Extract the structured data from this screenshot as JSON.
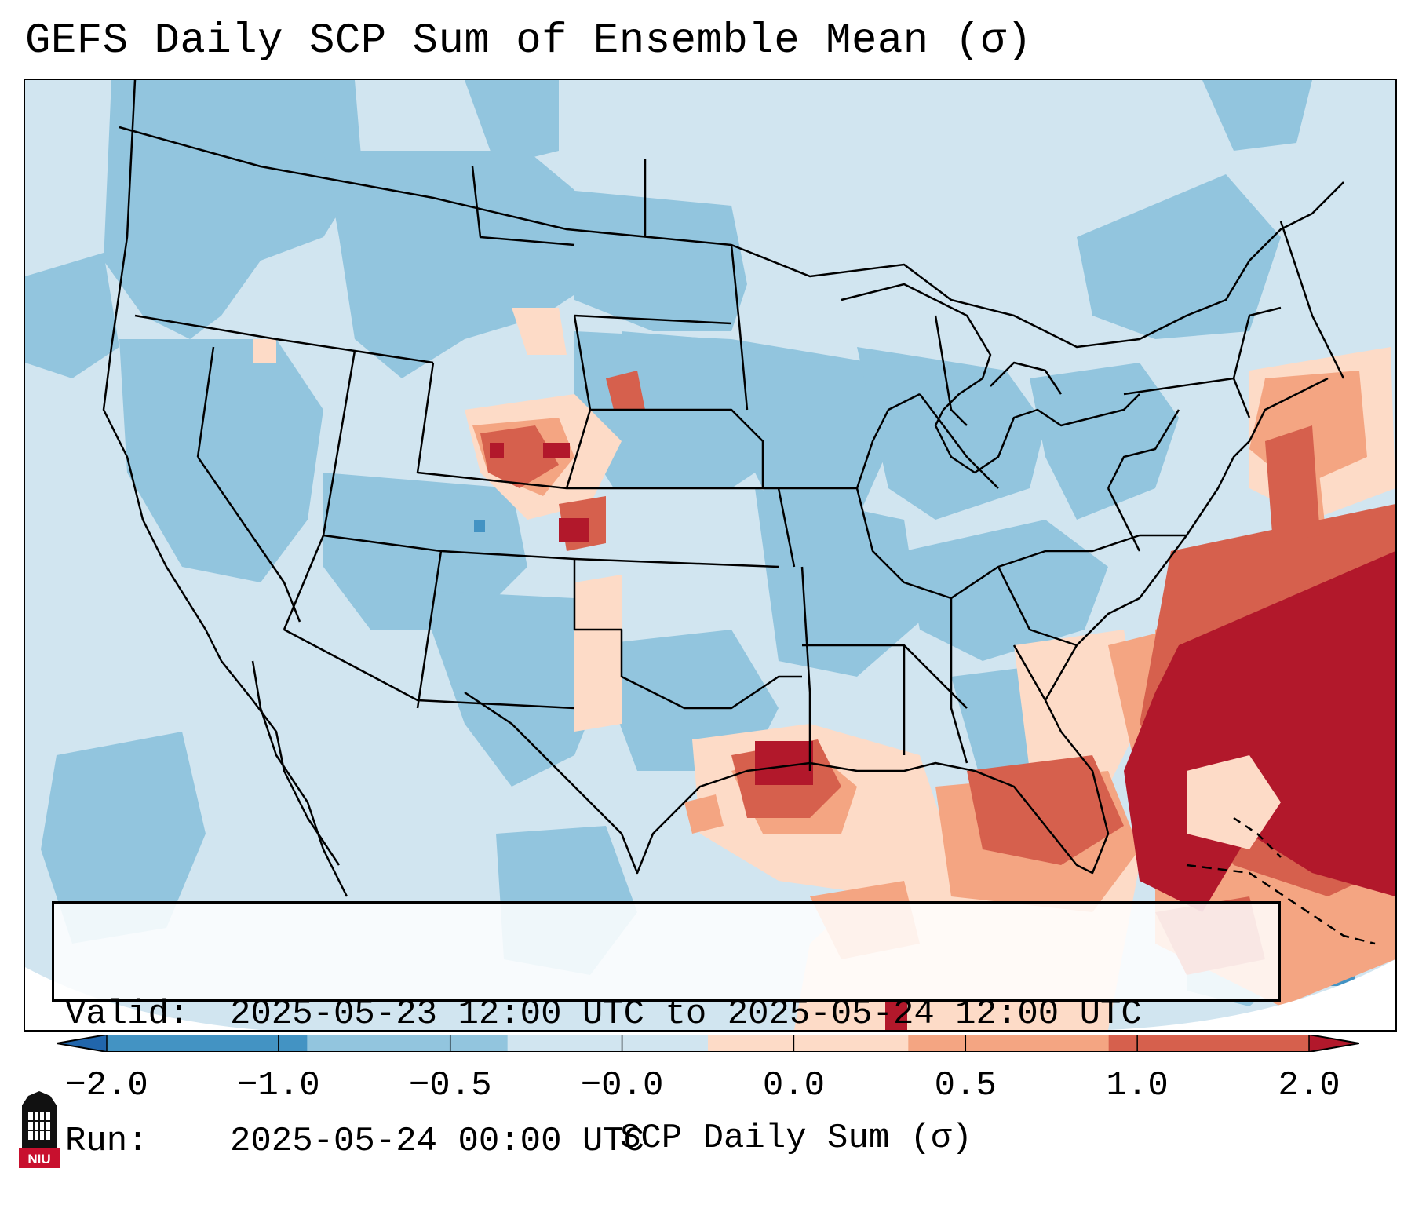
{
  "title": "GEFS Daily SCP Sum of Ensemble Mean (σ)",
  "info": {
    "valid_label": "Valid:",
    "valid_value": "2025-05-23 12:00 UTC to 2025-05-24 12:00 UTC",
    "run_label": "Run:",
    "run_value": "2025-05-24 00:00 UTC"
  },
  "colorbar": {
    "label": "SCP Daily Sum (σ)",
    "ticks": [
      "−2.0",
      "−1.0",
      "−0.5",
      "−0.0",
      "0.0",
      "0.5",
      "1.0",
      "2.0"
    ],
    "colors": [
      "#2166ac",
      "#4393c3",
      "#92c5de",
      "#d1e5f0",
      "#fddbc7",
      "#f4a582",
      "#d6604d",
      "#b2182b"
    ],
    "extend": "both"
  },
  "map": {
    "region": "CONUS",
    "background_value_color": "#d1e5f0",
    "outside_domain_color": "#ffffff"
  },
  "logo": {
    "text": "NIU"
  }
}
